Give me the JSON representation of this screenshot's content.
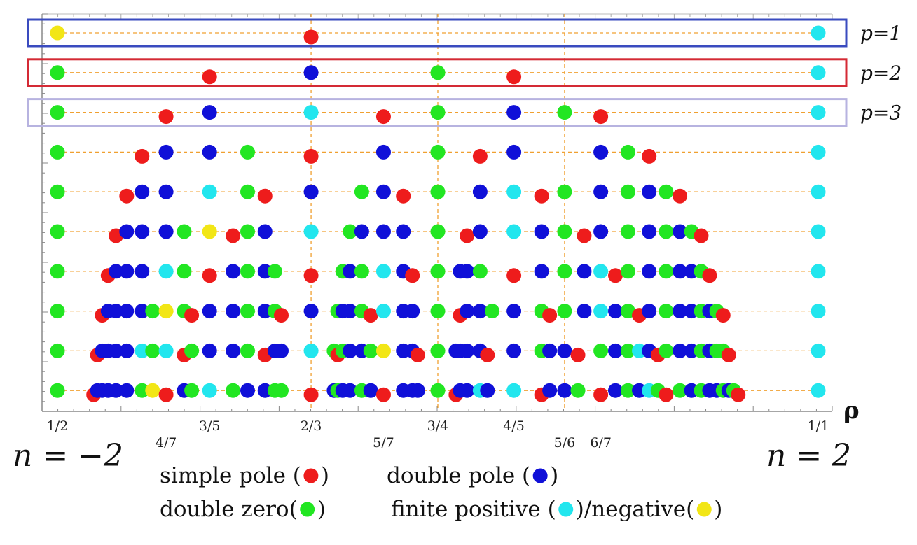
{
  "chart_data": {
    "type": "scatter",
    "xlabel": "ρ",
    "xlim": [
      0.5,
      1.0
    ],
    "grid": "vertical dashed lines at 2/3, 3/4, 5/6; horizontal dashed line per p row",
    "x_ticks": [
      {
        "value": 0.5,
        "label": "1/2"
      },
      {
        "value": 0.5714,
        "label": "4/7"
      },
      {
        "value": 0.6,
        "label": "3/5"
      },
      {
        "value": 0.6667,
        "label": "2/3"
      },
      {
        "value": 0.7143,
        "label": "5/7"
      },
      {
        "value": 0.75,
        "label": "3/4"
      },
      {
        "value": 0.8,
        "label": "4/5"
      },
      {
        "value": 0.8333,
        "label": "5/6"
      },
      {
        "value": 0.8571,
        "label": "6/7"
      },
      {
        "value": 1.0,
        "label": "1/1"
      }
    ],
    "end_labels": {
      "left": "n = −2",
      "right": "n = 2"
    },
    "row_labels": [
      {
        "p": 1,
        "label": "p=1",
        "box_color": "#3a4bbf"
      },
      {
        "p": 2,
        "label": "p=2",
        "box_color": "#d42a35"
      },
      {
        "p": 3,
        "label": "p=3",
        "box_color": "#b7b3e0"
      }
    ],
    "categories": {
      "s": {
        "name": "simple pole",
        "color": "#ee1c1c"
      },
      "d": {
        "name": "double pole",
        "color": "#1010d8"
      },
      "z": {
        "name": "double zero",
        "color": "#22e622"
      },
      "fp": {
        "name": "finite positive",
        "color": "#22e6ee"
      },
      "fn": {
        "name": "negative",
        "color": "#f2e616"
      }
    },
    "legend": [
      {
        "text": "simple pole (",
        "cat": "s",
        "close": ")"
      },
      {
        "text": "double pole (",
        "cat": "d",
        "close": ")"
      },
      {
        "text": "double zero(",
        "cat": "z",
        "close": ")"
      },
      {
        "text": "finite positive (",
        "cat": "fp",
        "close": ")/negative(",
        "cat2": "fn",
        "close2": ")"
      }
    ],
    "rows": [
      {
        "p": 1,
        "points": [
          [
            0.5,
            "fn"
          ],
          [
            0.6667,
            "s"
          ],
          [
            1.0,
            "fp"
          ]
        ]
      },
      {
        "p": 2,
        "points": [
          [
            0.5,
            "z"
          ],
          [
            0.6,
            "s"
          ],
          [
            0.6667,
            "d"
          ],
          [
            0.75,
            "z"
          ],
          [
            0.8,
            "s"
          ],
          [
            1.0,
            "fp"
          ]
        ]
      },
      {
        "p": 3,
        "points": [
          [
            0.5,
            "z"
          ],
          [
            0.5714,
            "s"
          ],
          [
            0.6,
            "d"
          ],
          [
            0.6667,
            "fp"
          ],
          [
            0.7143,
            "s"
          ],
          [
            0.75,
            "z"
          ],
          [
            0.8,
            "d"
          ],
          [
            0.8333,
            "z"
          ],
          [
            0.8571,
            "s"
          ],
          [
            1.0,
            "fp"
          ]
        ]
      },
      {
        "p": 4,
        "points": [
          [
            0.5,
            "z"
          ],
          [
            0.5556,
            "s"
          ],
          [
            0.5714,
            "d"
          ],
          [
            0.6,
            "d"
          ],
          [
            0.625,
            "z"
          ],
          [
            0.6667,
            "s"
          ],
          [
            0.7143,
            "d"
          ],
          [
            0.75,
            "z"
          ],
          [
            0.7778,
            "s"
          ],
          [
            0.8,
            "d"
          ],
          [
            0.8571,
            "d"
          ],
          [
            0.875,
            "z"
          ],
          [
            0.8889,
            "s"
          ],
          [
            1.0,
            "fp"
          ]
        ]
      },
      {
        "p": 5,
        "points": [
          [
            0.5,
            "z"
          ],
          [
            0.5455,
            "s"
          ],
          [
            0.5556,
            "d"
          ],
          [
            0.5714,
            "d"
          ],
          [
            0.6,
            "fp"
          ],
          [
            0.625,
            "z"
          ],
          [
            0.6364,
            "s"
          ],
          [
            0.6667,
            "d"
          ],
          [
            0.7,
            "z"
          ],
          [
            0.7143,
            "d"
          ],
          [
            0.7273,
            "s"
          ],
          [
            0.75,
            "z"
          ],
          [
            0.7778,
            "d"
          ],
          [
            0.8,
            "fp"
          ],
          [
            0.8182,
            "s"
          ],
          [
            0.8333,
            "z"
          ],
          [
            0.8571,
            "d"
          ],
          [
            0.875,
            "z"
          ],
          [
            0.8889,
            "d"
          ],
          [
            0.9,
            "z"
          ],
          [
            0.9091,
            "s"
          ],
          [
            1.0,
            "fp"
          ]
        ]
      },
      {
        "p": 6,
        "points": [
          [
            0.5,
            "z"
          ],
          [
            0.5385,
            "s"
          ],
          [
            0.5455,
            "d"
          ],
          [
            0.5556,
            "d"
          ],
          [
            0.5714,
            "d"
          ],
          [
            0.5833,
            "z"
          ],
          [
            0.6,
            "fn"
          ],
          [
            0.6154,
            "s"
          ],
          [
            0.625,
            "z"
          ],
          [
            0.6364,
            "d"
          ],
          [
            0.6667,
            "fp"
          ],
          [
            0.6923,
            "z"
          ],
          [
            0.7,
            "d"
          ],
          [
            0.7143,
            "d"
          ],
          [
            0.7273,
            "d"
          ],
          [
            0.75,
            "z"
          ],
          [
            0.7692,
            "s"
          ],
          [
            0.7778,
            "d"
          ],
          [
            0.8,
            "fp"
          ],
          [
            0.8182,
            "d"
          ],
          [
            0.8333,
            "z"
          ],
          [
            0.8462,
            "s"
          ],
          [
            0.8571,
            "d"
          ],
          [
            0.875,
            "z"
          ],
          [
            0.8889,
            "d"
          ],
          [
            0.9,
            "z"
          ],
          [
            0.9091,
            "d"
          ],
          [
            0.9167,
            "z"
          ],
          [
            0.9231,
            "s"
          ],
          [
            1.0,
            "fp"
          ]
        ]
      },
      {
        "p": 7,
        "points": [
          [
            0.5,
            "z"
          ],
          [
            0.5333,
            "s"
          ],
          [
            0.5385,
            "d"
          ],
          [
            0.5455,
            "d"
          ],
          [
            0.5556,
            "d"
          ],
          [
            0.5714,
            "fp"
          ],
          [
            0.5833,
            "z"
          ],
          [
            0.6,
            "s"
          ],
          [
            0.6154,
            "d"
          ],
          [
            0.625,
            "z"
          ],
          [
            0.6364,
            "d"
          ],
          [
            0.6429,
            "z"
          ],
          [
            0.6667,
            "s"
          ],
          [
            0.6875,
            "z"
          ],
          [
            0.6923,
            "d"
          ],
          [
            0.7,
            "z"
          ],
          [
            0.7143,
            "fp"
          ],
          [
            0.7273,
            "d"
          ],
          [
            0.7333,
            "s"
          ],
          [
            0.75,
            "z"
          ],
          [
            0.7647,
            "d"
          ],
          [
            0.7692,
            "d"
          ],
          [
            0.7778,
            "z"
          ],
          [
            0.8,
            "s"
          ],
          [
            0.8182,
            "d"
          ],
          [
            0.8333,
            "z"
          ],
          [
            0.8462,
            "d"
          ],
          [
            0.8571,
            "fp"
          ],
          [
            0.8667,
            "s"
          ],
          [
            0.875,
            "z"
          ],
          [
            0.8889,
            "d"
          ],
          [
            0.9,
            "z"
          ],
          [
            0.9091,
            "d"
          ],
          [
            0.9167,
            "d"
          ],
          [
            0.9231,
            "z"
          ],
          [
            0.9286,
            "s"
          ],
          [
            1.0,
            "fp"
          ]
        ]
      },
      {
        "p": 8,
        "points": [
          [
            0.5,
            "z"
          ],
          [
            0.5294,
            "s"
          ],
          [
            0.5333,
            "d"
          ],
          [
            0.5385,
            "d"
          ],
          [
            0.5455,
            "d"
          ],
          [
            0.5556,
            "d"
          ],
          [
            0.5625,
            "z"
          ],
          [
            0.5714,
            "fn"
          ],
          [
            0.5833,
            "z"
          ],
          [
            0.5882,
            "s"
          ],
          [
            0.6,
            "d"
          ],
          [
            0.6154,
            "d"
          ],
          [
            0.625,
            "z"
          ],
          [
            0.6364,
            "d"
          ],
          [
            0.6429,
            "z"
          ],
          [
            0.6471,
            "s"
          ],
          [
            0.6667,
            "d"
          ],
          [
            0.6842,
            "z"
          ],
          [
            0.6875,
            "d"
          ],
          [
            0.6923,
            "d"
          ],
          [
            0.7,
            "z"
          ],
          [
            0.7059,
            "s"
          ],
          [
            0.7143,
            "fp"
          ],
          [
            0.7273,
            "d"
          ],
          [
            0.7333,
            "d"
          ],
          [
            0.75,
            "z"
          ],
          [
            0.7647,
            "s"
          ],
          [
            0.7692,
            "d"
          ],
          [
            0.7778,
            "d"
          ],
          [
            0.7857,
            "z"
          ],
          [
            0.8,
            "d"
          ],
          [
            0.8182,
            "z"
          ],
          [
            0.8235,
            "s"
          ],
          [
            0.8333,
            "z"
          ],
          [
            0.8462,
            "d"
          ],
          [
            0.8571,
            "fp"
          ],
          [
            0.8667,
            "d"
          ],
          [
            0.875,
            "z"
          ],
          [
            0.8824,
            "s"
          ],
          [
            0.8889,
            "d"
          ],
          [
            0.9,
            "z"
          ],
          [
            0.9091,
            "d"
          ],
          [
            0.9167,
            "d"
          ],
          [
            0.9231,
            "z"
          ],
          [
            0.9286,
            "d"
          ],
          [
            0.9333,
            "z"
          ],
          [
            0.9375,
            "s"
          ],
          [
            1.0,
            "fp"
          ]
        ]
      },
      {
        "p": 9,
        "points": [
          [
            0.5,
            "z"
          ],
          [
            0.5263,
            "s"
          ],
          [
            0.5294,
            "d"
          ],
          [
            0.5333,
            "d"
          ],
          [
            0.5385,
            "d"
          ],
          [
            0.5455,
            "d"
          ],
          [
            0.5556,
            "fp"
          ],
          [
            0.5625,
            "z"
          ],
          [
            0.5714,
            "fp"
          ],
          [
            0.5833,
            "s"
          ],
          [
            0.5882,
            "z"
          ],
          [
            0.6,
            "d"
          ],
          [
            0.6154,
            "d"
          ],
          [
            0.625,
            "z"
          ],
          [
            0.6364,
            "s"
          ],
          [
            0.6429,
            "d"
          ],
          [
            0.6471,
            "d"
          ],
          [
            0.6667,
            "fp"
          ],
          [
            0.6818,
            "z"
          ],
          [
            0.6842,
            "s"
          ],
          [
            0.6875,
            "z"
          ],
          [
            0.6923,
            "d"
          ],
          [
            0.7,
            "d"
          ],
          [
            0.7059,
            "z"
          ],
          [
            0.7143,
            "fn"
          ],
          [
            0.7273,
            "d"
          ],
          [
            0.7333,
            "d"
          ],
          [
            0.7368,
            "s"
          ],
          [
            0.75,
            "z"
          ],
          [
            0.7619,
            "d"
          ],
          [
            0.7647,
            "d"
          ],
          [
            0.7692,
            "d"
          ],
          [
            0.7778,
            "d"
          ],
          [
            0.7826,
            "s"
          ],
          [
            0.8,
            "d"
          ],
          [
            0.8182,
            "z"
          ],
          [
            0.8235,
            "d"
          ],
          [
            0.8333,
            "d"
          ],
          [
            0.8421,
            "s"
          ],
          [
            0.8571,
            "z"
          ],
          [
            0.8667,
            "d"
          ],
          [
            0.875,
            "z"
          ],
          [
            0.8824,
            "fp"
          ],
          [
            0.8889,
            "d"
          ],
          [
            0.8947,
            "s"
          ],
          [
            0.9,
            "z"
          ],
          [
            0.9091,
            "d"
          ],
          [
            0.9167,
            "d"
          ],
          [
            0.9231,
            "z"
          ],
          [
            0.9286,
            "d"
          ],
          [
            0.9333,
            "z"
          ],
          [
            0.9375,
            "z"
          ],
          [
            0.9412,
            "s"
          ],
          [
            1.0,
            "fp"
          ]
        ]
      },
      {
        "p": 10,
        "points": [
          [
            0.5,
            "z"
          ],
          [
            0.5238,
            "s"
          ],
          [
            0.5263,
            "d"
          ],
          [
            0.5294,
            "d"
          ],
          [
            0.5333,
            "d"
          ],
          [
            0.5385,
            "d"
          ],
          [
            0.5455,
            "d"
          ],
          [
            0.5556,
            "z"
          ],
          [
            0.5625,
            "fn"
          ],
          [
            0.5714,
            "s"
          ],
          [
            0.5833,
            "d"
          ],
          [
            0.5882,
            "z"
          ],
          [
            0.6,
            "fp"
          ],
          [
            0.6154,
            "z"
          ],
          [
            0.625,
            "d"
          ],
          [
            0.6364,
            "d"
          ],
          [
            0.6429,
            "z"
          ],
          [
            0.6471,
            "z"
          ],
          [
            0.6667,
            "s"
          ],
          [
            0.6818,
            "d"
          ],
          [
            0.6842,
            "z"
          ],
          [
            0.6875,
            "d"
          ],
          [
            0.6923,
            "d"
          ],
          [
            0.7,
            "z"
          ],
          [
            0.7059,
            "d"
          ],
          [
            0.7143,
            "s"
          ],
          [
            0.7273,
            "d"
          ],
          [
            0.7333,
            "d"
          ],
          [
            0.7368,
            "d"
          ],
          [
            0.75,
            "z"
          ],
          [
            0.7619,
            "s"
          ],
          [
            0.7647,
            "d"
          ],
          [
            0.7692,
            "d"
          ],
          [
            0.7778,
            "fp"
          ],
          [
            0.7826,
            "d"
          ],
          [
            0.8,
            "fp"
          ],
          [
            0.8182,
            "s"
          ],
          [
            0.8235,
            "d"
          ],
          [
            0.8333,
            "d"
          ],
          [
            0.8421,
            "z"
          ],
          [
            0.8571,
            "s"
          ],
          [
            0.8667,
            "d"
          ],
          [
            0.875,
            "z"
          ],
          [
            0.8824,
            "d"
          ],
          [
            0.8889,
            "fp"
          ],
          [
            0.8947,
            "z"
          ],
          [
            0.9,
            "s"
          ],
          [
            0.9091,
            "z"
          ],
          [
            0.9167,
            "d"
          ],
          [
            0.9231,
            "z"
          ],
          [
            0.9286,
            "d"
          ],
          [
            0.9333,
            "d"
          ],
          [
            0.9375,
            "z"
          ],
          [
            0.9412,
            "d"
          ],
          [
            0.9444,
            "z"
          ],
          [
            0.9474,
            "s"
          ],
          [
            1.0,
            "fp"
          ]
        ]
      }
    ]
  }
}
